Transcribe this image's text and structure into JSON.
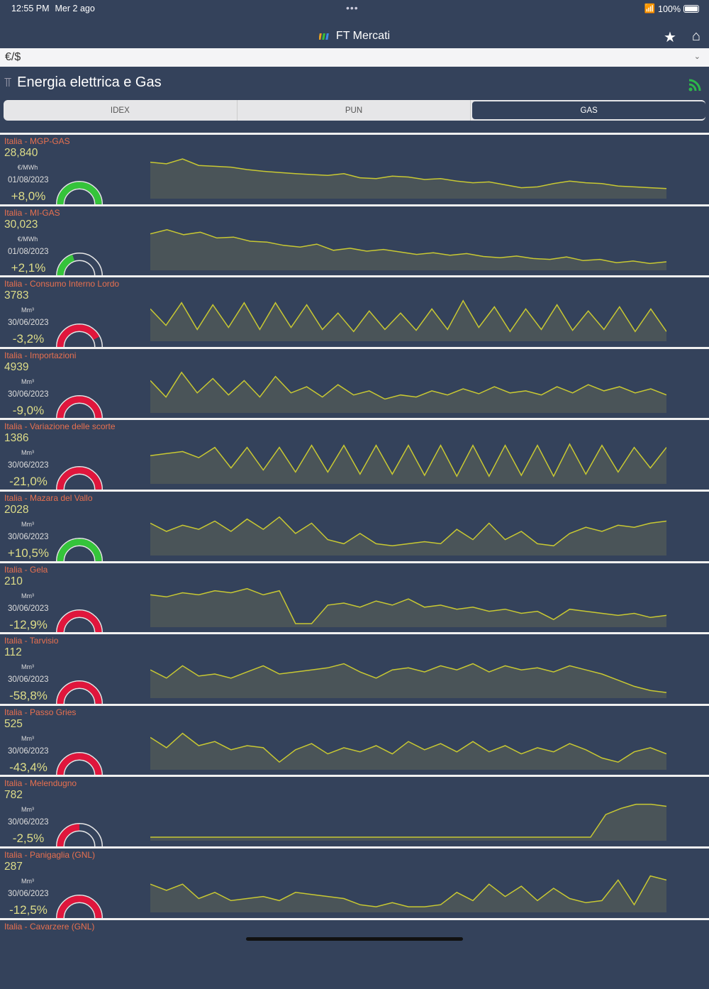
{
  "status": {
    "time": "12:55 PM",
    "date": "Mer 2 ago",
    "battery": "100%"
  },
  "app": {
    "title": "FT Mercati",
    "icons": [
      "star-icon",
      "home-icon"
    ]
  },
  "currency": {
    "value": "€/$"
  },
  "section": {
    "title": "Energia elettrica e Gas"
  },
  "tabs": [
    {
      "label": "IDEX",
      "active": false
    },
    {
      "label": "PUN",
      "active": false
    },
    {
      "label": "GAS",
      "active": true
    }
  ],
  "colors": {
    "up": "#35c43a",
    "down": "#e0163c",
    "line": "#c8c832",
    "title": "#e8704f"
  },
  "rows": [
    {
      "title": "Italia - MGP-GAS",
      "value": "28,840",
      "unit": "€/MWh",
      "date": "01/08/2023",
      "change": "+8,0%",
      "gauge": 1.0,
      "trend": "up",
      "series": [
        80,
        76,
        88,
        72,
        70,
        68,
        62,
        58,
        55,
        52,
        50,
        48,
        52,
        42,
        40,
        46,
        44,
        38,
        40,
        34,
        30,
        32,
        25,
        18,
        20,
        28,
        34,
        30,
        28,
        22,
        20,
        18,
        16
      ]
    },
    {
      "title": "Italia - MI-GAS",
      "value": "30,023",
      "unit": "€/MWh",
      "date": "01/08/2023",
      "change": "+2,1%",
      "gauge": 0.4,
      "trend": "up",
      "series": [
        80,
        90,
        78,
        84,
        70,
        72,
        62,
        60,
        52,
        48,
        55,
        40,
        45,
        38,
        42,
        36,
        30,
        34,
        28,
        32,
        25,
        22,
        26,
        20,
        18,
        24,
        15,
        18,
        10,
        14,
        8,
        12
      ]
    },
    {
      "title": "Italia - Consumo Interno Lordo",
      "value": "3783",
      "unit": "Mm³",
      "date": "30/06/2023",
      "change": "-3,2%",
      "gauge": 0.85,
      "trend": "down",
      "series": [
        70,
        30,
        85,
        20,
        80,
        25,
        85,
        20,
        85,
        25,
        80,
        20,
        60,
        15,
        65,
        20,
        60,
        18,
        70,
        20,
        90,
        25,
        75,
        15,
        70,
        20,
        80,
        18,
        65,
        20,
        75,
        15,
        70,
        15
      ]
    },
    {
      "title": "Italia - Importazioni",
      "value": "4939",
      "unit": "Mm³",
      "date": "30/06/2023",
      "change": "-9,0%",
      "gauge": 1.0,
      "trend": "down",
      "series": [
        70,
        30,
        90,
        40,
        75,
        35,
        70,
        30,
        80,
        40,
        55,
        30,
        60,
        35,
        45,
        25,
        35,
        30,
        45,
        35,
        50,
        38,
        55,
        40,
        45,
        35,
        55,
        40,
        60,
        45,
        55,
        40,
        50,
        35
      ]
    },
    {
      "title": "Italia - Variazione delle scorte",
      "value": "1386",
      "unit": "Mm³",
      "date": "30/06/2023",
      "change": "-21,0%",
      "gauge": 1.0,
      "trend": "down",
      "series": [
        60,
        65,
        70,
        55,
        80,
        30,
        80,
        25,
        80,
        20,
        85,
        20,
        85,
        15,
        85,
        15,
        85,
        12,
        85,
        10,
        85,
        10,
        85,
        12,
        85,
        10,
        88,
        15,
        85,
        20,
        80,
        30,
        80
      ]
    },
    {
      "title": "Italia - Mazara del Vallo",
      "value": "2028",
      "unit": "Mm³",
      "date": "30/06/2023",
      "change": "+10,5%",
      "gauge": 1.0,
      "trend": "up",
      "series": [
        70,
        50,
        65,
        55,
        75,
        50,
        80,
        55,
        85,
        45,
        70,
        30,
        20,
        45,
        20,
        15,
        20,
        25,
        20,
        55,
        30,
        70,
        30,
        50,
        20,
        15,
        45,
        60,
        50,
        65,
        60,
        70,
        75
      ]
    },
    {
      "title": "Italia - Gela",
      "value": "210",
      "unit": "Mm³",
      "date": "30/06/2023",
      "change": "-12,9%",
      "gauge": 1.0,
      "trend": "down",
      "series": [
        70,
        65,
        75,
        70,
        80,
        75,
        85,
        70,
        80,
        0,
        0,
        45,
        50,
        40,
        55,
        45,
        60,
        40,
        45,
        35,
        40,
        30,
        35,
        25,
        30,
        10,
        35,
        30,
        25,
        20,
        25,
        15,
        20
      ]
    },
    {
      "title": "Italia - Tarvisio",
      "value": "112",
      "unit": "Mm³",
      "date": "30/06/2023",
      "change": "-58,8%",
      "gauge": 1.0,
      "trend": "down",
      "series": [
        60,
        40,
        70,
        45,
        50,
        40,
        55,
        70,
        50,
        55,
        60,
        65,
        75,
        55,
        40,
        60,
        65,
        55,
        70,
        60,
        75,
        55,
        70,
        60,
        65,
        55,
        70,
        60,
        50,
        35,
        20,
        10,
        5
      ]
    },
    {
      "title": "Italia - Passo Gries",
      "value": "525",
      "unit": "Mm³",
      "date": "30/06/2023",
      "change": "-43,4%",
      "gauge": 1.0,
      "trend": "down",
      "series": [
        70,
        45,
        80,
        50,
        60,
        40,
        50,
        45,
        10,
        40,
        55,
        30,
        45,
        35,
        50,
        30,
        60,
        40,
        55,
        35,
        60,
        35,
        50,
        30,
        45,
        35,
        55,
        40,
        20,
        10,
        35,
        45,
        30
      ]
    },
    {
      "title": "Italia - Melendugno",
      "value": "782",
      "unit": "Mm³",
      "date": "30/06/2023",
      "change": "-2,5%",
      "gauge": 0.5,
      "trend": "down",
      "series": [
        0,
        0,
        0,
        0,
        0,
        0,
        0,
        0,
        0,
        0,
        0,
        0,
        0,
        0,
        0,
        0,
        0,
        0,
        0,
        0,
        0,
        0,
        0,
        0,
        0,
        0,
        0,
        0,
        0,
        0,
        55,
        70,
        80,
        80,
        75
      ]
    },
    {
      "title": "Italia - Panigaglia (GNL)",
      "value": "287",
      "unit": "Mm³",
      "date": "30/06/2023",
      "change": "-12,5%",
      "gauge": 1.0,
      "trend": "down",
      "series": [
        60,
        45,
        60,
        25,
        40,
        20,
        25,
        30,
        20,
        40,
        35,
        30,
        25,
        10,
        5,
        15,
        5,
        5,
        10,
        40,
        20,
        60,
        30,
        55,
        20,
        50,
        25,
        15,
        20,
        70,
        10,
        80,
        70
      ]
    },
    {
      "title": "Italia - Cavarzere (GNL)"
    }
  ]
}
